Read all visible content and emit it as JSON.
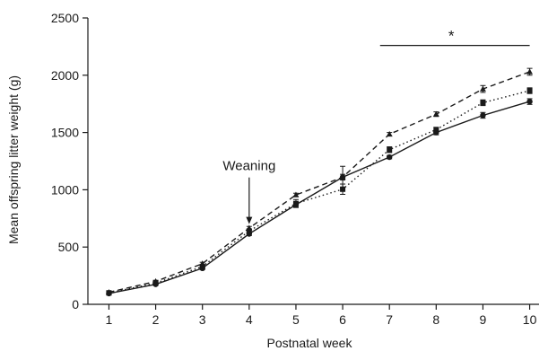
{
  "chart_data": {
    "type": "line",
    "title": "",
    "xlabel": "Postnatal week",
    "ylabel": "Mean offspring litter weight (g)",
    "x": [
      1,
      2,
      3,
      4,
      5,
      6,
      7,
      8,
      9,
      10
    ],
    "x_ticks": [
      "1",
      "2",
      "3",
      "4",
      "5",
      "6",
      "7",
      "8",
      "9",
      "10"
    ],
    "xlim": [
      0.55,
      10.2
    ],
    "ylim": [
      0,
      2500
    ],
    "y_ticks": [
      "0",
      "500",
      "1000",
      "1500",
      "2000",
      "2500"
    ],
    "grid": false,
    "legend": "none",
    "series": [
      {
        "line_style": "solid",
        "marker": "circle",
        "color": "#1a1a1a",
        "values": [
          95,
          175,
          315,
          615,
          870,
          1110,
          1285,
          1500,
          1650,
          1770
        ],
        "errors": [
          8,
          10,
          12,
          15,
          20,
          25,
          15,
          20,
          25,
          25
        ]
      },
      {
        "line_style": "dotted",
        "marker": "square",
        "color": "#1a1a1a",
        "values": [
          100,
          185,
          330,
          640,
          880,
          1005,
          1350,
          1525,
          1760,
          1865
        ],
        "errors": [
          8,
          10,
          12,
          15,
          35,
          45,
          25,
          20,
          25,
          25
        ]
      },
      {
        "line_style": "dashed",
        "marker": "triangle",
        "color": "#1a1a1a",
        "values": [
          105,
          200,
          355,
          665,
          955,
          1110,
          1485,
          1660,
          1880,
          2030
        ],
        "errors": [
          8,
          10,
          12,
          15,
          15,
          95,
          15,
          20,
          30,
          30
        ]
      }
    ],
    "annotations": [
      {
        "text": "Weaning",
        "x": 4,
        "type": "arrow",
        "tip_value": 700
      },
      {
        "text": "*",
        "type": "significance-bar",
        "x_range": [
          6.8,
          10
        ],
        "y": 2260
      }
    ]
  }
}
